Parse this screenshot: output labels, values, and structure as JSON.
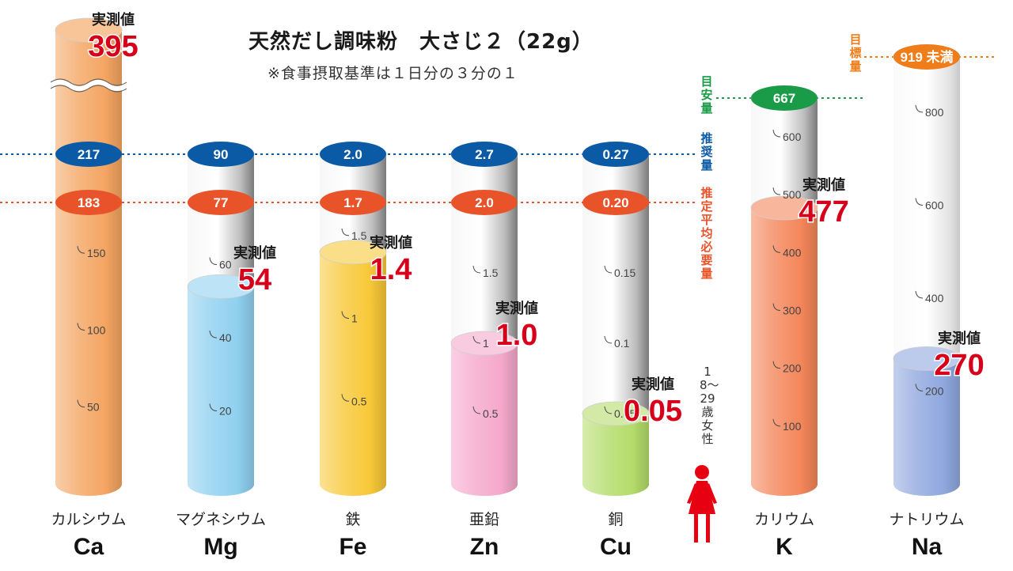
{
  "title": "天然だし調味粉　大さじ２（22g）",
  "subtitle": "※食事摂取基準は１日分の３分の１",
  "reference_labels": {
    "target": "目標量",
    "adequate": "目安量",
    "recommended": "推奨量",
    "estimated_average": "推定平均必要量"
  },
  "target_group": "18〜29歳女性",
  "colors": {
    "recommended": "#0b5aa6",
    "estimated_average": "#e8532a",
    "adequate": "#1a9b48",
    "target": "#ee7d1a",
    "measured_text": "#d7001b"
  },
  "chart_data": {
    "type": "bar",
    "title": "天然だし調味粉　大さじ２（22g）",
    "subtitle": "※食事摂取基準は１日分の３分の１",
    "measured_label": "実測値",
    "bars": [
      {
        "symbol": "Ca",
        "name": "カルシウム",
        "measured": 395,
        "measured_label": "395",
        "recommended": 217,
        "recommended_label": "217",
        "estimated_average": 183,
        "estimated_average_label": "183",
        "ticks": [
          50,
          100,
          150
        ],
        "fill": "#f4a562",
        "axis_break": true
      },
      {
        "symbol": "Mg",
        "name": "マグネシウム",
        "measured": 54,
        "measured_label": "54",
        "recommended": 90,
        "recommended_label": "90",
        "estimated_average": 77,
        "estimated_average_label": "77",
        "ticks": [
          20,
          40,
          60
        ],
        "fill": "#8fd0f0"
      },
      {
        "symbol": "Fe",
        "name": "鉄",
        "measured": 1.4,
        "measured_label": "1.4",
        "recommended": 2.0,
        "recommended_label": "2.0",
        "estimated_average": 1.7,
        "estimated_average_label": "1.7",
        "ticks": [
          0.5,
          1.0,
          1.5
        ],
        "fill": "#f8c838"
      },
      {
        "symbol": "Zn",
        "name": "亜鉛",
        "measured": 1.0,
        "measured_label": "1.0",
        "recommended": 2.7,
        "recommended_label": "2.7",
        "estimated_average": 2.0,
        "estimated_average_label": "2.0",
        "ticks": [
          0.5,
          1.0,
          1.5
        ],
        "fill": "#f5a8cc"
      },
      {
        "symbol": "Cu",
        "name": "銅",
        "measured": 0.05,
        "measured_label": "0.05",
        "recommended": 0.27,
        "recommended_label": "0.27",
        "estimated_average": 0.2,
        "estimated_average_label": "0.20",
        "ticks": [
          0.05,
          0.1,
          0.15
        ],
        "fill": "#b4dc6a"
      },
      {
        "symbol": "K",
        "name": "カリウム",
        "measured": 477,
        "measured_label": "477",
        "adequate": 667,
        "adequate_label": "667",
        "ticks": [
          100,
          200,
          300,
          400,
          500,
          600
        ],
        "fill": "#f4865a"
      },
      {
        "symbol": "Na",
        "name": "ナトリウム",
        "measured": 270,
        "measured_label": "270",
        "target": 919,
        "target_label": "919 未満",
        "ticks": [
          200,
          400,
          600,
          800
        ],
        "fill": "#90a8de"
      }
    ]
  }
}
